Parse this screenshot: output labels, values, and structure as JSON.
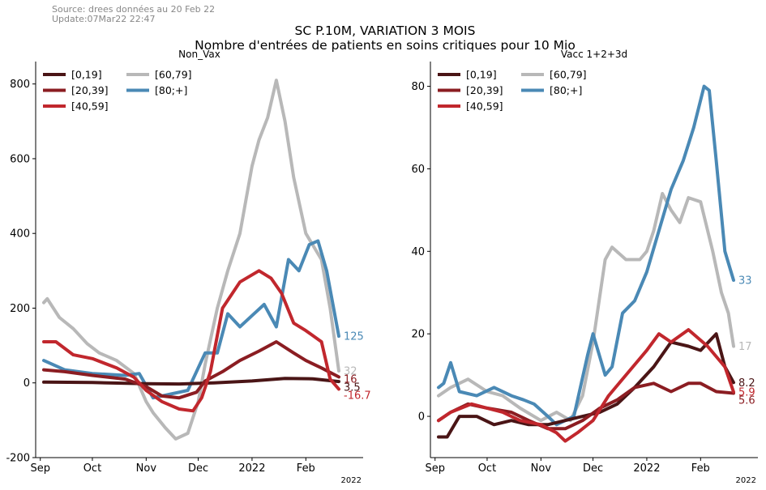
{
  "header": {
    "source_line1": "Source: drees données au 20 Feb 22",
    "source_line2": "Update:07Mar22 22:47",
    "title_line1": "SC P.10M, VARIATION 3 MOIS",
    "title_line2": "Nombre d'entrées de patients en soins critiques pour 10 Mio"
  },
  "colors": {
    "[0,19]": "#4a1516",
    "[20,39]": "#8b1d22",
    "[40,59]": "#c1272d",
    "[60,79]": "#b8b8b8",
    "[80;+]": "#4a89b5"
  },
  "chart_data": [
    {
      "type": "line",
      "title": "Non_Vax",
      "xlabel": "",
      "ylabel": "",
      "x_range": [
        "2021-09-03",
        "2022-02-20"
      ],
      "x_ticks": [
        {
          "date": "2021-09-01",
          "label": "Sep"
        },
        {
          "date": "2021-10-01",
          "label": "Oct"
        },
        {
          "date": "2021-11-01",
          "label": "Nov"
        },
        {
          "date": "2021-12-01",
          "label": "Dec"
        },
        {
          "date": "2022-01-01",
          "label": "2022"
        },
        {
          "date": "2022-02-01",
          "label": "Feb"
        }
      ],
      "x_offset_label": "2022",
      "ylim": [
        -200,
        860
      ],
      "y_ticks": [
        -200,
        0,
        200,
        400,
        600,
        800
      ],
      "grid": false,
      "legend_position": "top-left",
      "series": [
        {
          "name": "[0,19]",
          "points": [
            [
              "2021-09-03",
              2
            ],
            [
              "2021-10-01",
              1
            ],
            [
              "2021-11-01",
              -2
            ],
            [
              "2021-11-20",
              -3
            ],
            [
              "2021-12-10",
              0
            ],
            [
              "2022-01-01",
              5
            ],
            [
              "2022-01-20",
              12
            ],
            [
              "2022-02-05",
              11
            ],
            [
              "2022-02-20",
              3.5
            ]
          ],
          "end_label": "3.5"
        },
        {
          "name": "[20,39]",
          "points": [
            [
              "2021-09-03",
              35
            ],
            [
              "2021-09-15",
              30
            ],
            [
              "2021-10-01",
              20
            ],
            [
              "2021-10-20",
              10
            ],
            [
              "2021-11-01",
              -10
            ],
            [
              "2021-11-10",
              -35
            ],
            [
              "2021-11-20",
              -40
            ],
            [
              "2021-11-30",
              -25
            ],
            [
              "2021-12-05",
              5
            ],
            [
              "2021-12-15",
              30
            ],
            [
              "2021-12-25",
              60
            ],
            [
              "2022-01-05",
              85
            ],
            [
              "2022-01-15",
              110
            ],
            [
              "2022-01-25",
              80
            ],
            [
              "2022-02-01",
              60
            ],
            [
              "2022-02-10",
              40
            ],
            [
              "2022-02-20",
              16
            ]
          ],
          "end_label": "16"
        },
        {
          "name": "[40,59]",
          "points": [
            [
              "2021-09-03",
              110
            ],
            [
              "2021-09-10",
              110
            ],
            [
              "2021-09-20",
              75
            ],
            [
              "2021-10-01",
              65
            ],
            [
              "2021-10-15",
              40
            ],
            [
              "2021-10-25",
              15
            ],
            [
              "2021-11-01",
              -20
            ],
            [
              "2021-11-10",
              -50
            ],
            [
              "2021-11-20",
              -70
            ],
            [
              "2021-11-28",
              -75
            ],
            [
              "2021-12-03",
              -40
            ],
            [
              "2021-12-08",
              30
            ],
            [
              "2021-12-15",
              200
            ],
            [
              "2021-12-25",
              270
            ],
            [
              "2022-01-05",
              300
            ],
            [
              "2022-01-12",
              280
            ],
            [
              "2022-01-18",
              240
            ],
            [
              "2022-01-25",
              160
            ],
            [
              "2022-02-01",
              140
            ],
            [
              "2022-02-10",
              110
            ],
            [
              "2022-02-15",
              10
            ],
            [
              "2022-02-20",
              -16.7
            ]
          ],
          "end_label": "-16.7"
        },
        {
          "name": "[60,79]",
          "points": [
            [
              "2021-09-03",
              215
            ],
            [
              "2021-09-05",
              225
            ],
            [
              "2021-09-12",
              175
            ],
            [
              "2021-09-20",
              145
            ],
            [
              "2021-09-28",
              105
            ],
            [
              "2021-10-05",
              80
            ],
            [
              "2021-10-15",
              60
            ],
            [
              "2021-10-25",
              25
            ],
            [
              "2021-11-01",
              -50
            ],
            [
              "2021-11-05",
              -80
            ],
            [
              "2021-11-12",
              -120
            ],
            [
              "2021-11-18",
              -150
            ],
            [
              "2021-11-25",
              -135
            ],
            [
              "2021-12-01",
              -50
            ],
            [
              "2021-12-05",
              50
            ],
            [
              "2021-12-12",
              200
            ],
            [
              "2021-12-18",
              300
            ],
            [
              "2021-12-25",
              400
            ],
            [
              "2022-01-01",
              580
            ],
            [
              "2022-01-05",
              650
            ],
            [
              "2022-01-10",
              710
            ],
            [
              "2022-01-15",
              810
            ],
            [
              "2022-01-20",
              700
            ],
            [
              "2022-01-25",
              550
            ],
            [
              "2022-02-01",
              400
            ],
            [
              "2022-02-10",
              330
            ],
            [
              "2022-02-15",
              200
            ],
            [
              "2022-02-20",
              32
            ]
          ],
          "end_label": "32"
        },
        {
          "name": "[80;+]",
          "points": [
            [
              "2021-09-03",
              60
            ],
            [
              "2021-09-15",
              35
            ],
            [
              "2021-10-01",
              25
            ],
            [
              "2021-10-20",
              20
            ],
            [
              "2021-10-28",
              25
            ],
            [
              "2021-11-05",
              -40
            ],
            [
              "2021-11-15",
              -30
            ],
            [
              "2021-11-25",
              -20
            ],
            [
              "2021-12-05",
              80
            ],
            [
              "2021-12-12",
              80
            ],
            [
              "2021-12-18",
              185
            ],
            [
              "2021-12-25",
              150
            ],
            [
              "2022-01-01",
              180
            ],
            [
              "2022-01-08",
              210
            ],
            [
              "2022-01-15",
              150
            ],
            [
              "2022-01-22",
              330
            ],
            [
              "2022-01-28",
              300
            ],
            [
              "2022-02-03",
              370
            ],
            [
              "2022-02-08",
              380
            ],
            [
              "2022-02-13",
              300
            ],
            [
              "2022-02-20",
              125
            ]
          ],
          "end_label": "125"
        }
      ]
    },
    {
      "type": "line",
      "title": "Vacc 1+2+3d",
      "xlabel": "",
      "ylabel": "",
      "x_range": [
        "2021-09-03",
        "2022-02-20"
      ],
      "x_ticks": [
        {
          "date": "2021-09-01",
          "label": "Sep"
        },
        {
          "date": "2021-10-01",
          "label": "Oct"
        },
        {
          "date": "2021-11-01",
          "label": "Nov"
        },
        {
          "date": "2021-12-01",
          "label": "Dec"
        },
        {
          "date": "2022-01-01",
          "label": "2022"
        },
        {
          "date": "2022-02-01",
          "label": "Feb"
        }
      ],
      "x_offset_label": "2022",
      "ylim": [
        -10,
        86
      ],
      "y_ticks": [
        0,
        20,
        40,
        60,
        80
      ],
      "grid": false,
      "legend_position": "top-left",
      "series": [
        {
          "name": "[0,19]",
          "points": [
            [
              "2021-09-03",
              -5
            ],
            [
              "2021-09-08",
              -5
            ],
            [
              "2021-09-15",
              0
            ],
            [
              "2021-09-25",
              0
            ],
            [
              "2021-10-05",
              -2
            ],
            [
              "2021-10-15",
              -1
            ],
            [
              "2021-10-25",
              -2
            ],
            [
              "2021-11-05",
              -2
            ],
            [
              "2021-11-15",
              -1
            ],
            [
              "2021-11-25",
              0
            ],
            [
              "2021-12-05",
              1
            ],
            [
              "2021-12-15",
              3
            ],
            [
              "2021-12-25",
              7
            ],
            [
              "2022-01-05",
              12
            ],
            [
              "2022-01-15",
              18
            ],
            [
              "2022-01-25",
              17
            ],
            [
              "2022-02-01",
              16
            ],
            [
              "2022-02-10",
              20
            ],
            [
              "2022-02-15",
              12
            ],
            [
              "2022-02-20",
              8.2
            ]
          ],
          "end_label": "8.2"
        },
        {
          "name": "[20,39]",
          "points": [
            [
              "2021-09-03",
              -1
            ],
            [
              "2021-09-10",
              1
            ],
            [
              "2021-09-20",
              3
            ],
            [
              "2021-10-01",
              2
            ],
            [
              "2021-10-15",
              1
            ],
            [
              "2021-10-25",
              -1
            ],
            [
              "2021-11-05",
              -3
            ],
            [
              "2021-11-15",
              -3
            ],
            [
              "2021-11-25",
              -1
            ],
            [
              "2021-12-05",
              2
            ],
            [
              "2021-12-15",
              4
            ],
            [
              "2021-12-25",
              7
            ],
            [
              "2022-01-05",
              8
            ],
            [
              "2022-01-15",
              6
            ],
            [
              "2022-01-25",
              8
            ],
            [
              "2022-02-01",
              8
            ],
            [
              "2022-02-10",
              6
            ],
            [
              "2022-02-20",
              5.6
            ]
          ],
          "end_label": "5.6"
        },
        {
          "name": "[40,59]",
          "points": [
            [
              "2021-09-03",
              -1
            ],
            [
              "2021-09-10",
              1
            ],
            [
              "2021-09-22",
              3
            ],
            [
              "2021-10-01",
              2
            ],
            [
              "2021-10-10",
              1
            ],
            [
              "2021-10-20",
              -1
            ],
            [
              "2021-11-01",
              -2
            ],
            [
              "2021-11-10",
              -4
            ],
            [
              "2021-11-15",
              -6
            ],
            [
              "2021-11-22",
              -4
            ],
            [
              "2021-12-01",
              -1
            ],
            [
              "2021-12-10",
              5
            ],
            [
              "2021-12-20",
              10
            ],
            [
              "2022-01-01",
              16
            ],
            [
              "2022-01-08",
              20
            ],
            [
              "2022-01-15",
              18
            ],
            [
              "2022-01-25",
              21
            ],
            [
              "2022-02-05",
              17
            ],
            [
              "2022-02-15",
              12
            ],
            [
              "2022-02-20",
              5.9
            ]
          ],
          "end_label": "5.9"
        },
        {
          "name": "[60,79]",
          "points": [
            [
              "2021-09-03",
              5
            ],
            [
              "2021-09-10",
              7
            ],
            [
              "2021-09-20",
              9
            ],
            [
              "2021-10-01",
              6
            ],
            [
              "2021-10-10",
              5
            ],
            [
              "2021-10-20",
              2
            ],
            [
              "2021-11-01",
              -1
            ],
            [
              "2021-11-10",
              1
            ],
            [
              "2021-11-18",
              -1
            ],
            [
              "2021-11-25",
              5
            ],
            [
              "2021-12-01",
              18
            ],
            [
              "2021-12-08",
              38
            ],
            [
              "2021-12-12",
              41
            ],
            [
              "2021-12-20",
              38
            ],
            [
              "2021-12-28",
              38
            ],
            [
              "2022-01-01",
              40
            ],
            [
              "2022-01-05",
              45
            ],
            [
              "2022-01-10",
              54
            ],
            [
              "2022-01-15",
              50
            ],
            [
              "2022-01-20",
              47
            ],
            [
              "2022-01-25",
              53
            ],
            [
              "2022-02-01",
              52
            ],
            [
              "2022-02-08",
              40
            ],
            [
              "2022-02-13",
              30
            ],
            [
              "2022-02-17",
              25
            ],
            [
              "2022-02-20",
              17
            ]
          ],
          "end_label": "17"
        },
        {
          "name": "[80;+]",
          "points": [
            [
              "2021-09-03",
              7
            ],
            [
              "2021-09-06",
              8
            ],
            [
              "2021-09-10",
              13
            ],
            [
              "2021-09-15",
              6
            ],
            [
              "2021-09-25",
              5
            ],
            [
              "2021-10-05",
              7
            ],
            [
              "2021-10-15",
              5
            ],
            [
              "2021-10-22",
              4
            ],
            [
              "2021-10-28",
              3
            ],
            [
              "2021-11-05",
              0
            ],
            [
              "2021-11-10",
              -2
            ],
            [
              "2021-11-15",
              -1
            ],
            [
              "2021-11-20",
              0
            ],
            [
              "2021-11-28",
              15
            ],
            [
              "2021-12-01",
              20
            ],
            [
              "2021-12-08",
              10
            ],
            [
              "2021-12-12",
              12
            ],
            [
              "2021-12-18",
              25
            ],
            [
              "2021-12-25",
              28
            ],
            [
              "2022-01-01",
              35
            ],
            [
              "2022-01-08",
              45
            ],
            [
              "2022-01-15",
              55
            ],
            [
              "2022-01-22",
              62
            ],
            [
              "2022-01-28",
              70
            ],
            [
              "2022-02-03",
              80
            ],
            [
              "2022-02-06",
              79
            ],
            [
              "2022-02-10",
              62
            ],
            [
              "2022-02-15",
              40
            ],
            [
              "2022-02-20",
              33
            ]
          ],
          "end_label": "33"
        }
      ]
    }
  ]
}
